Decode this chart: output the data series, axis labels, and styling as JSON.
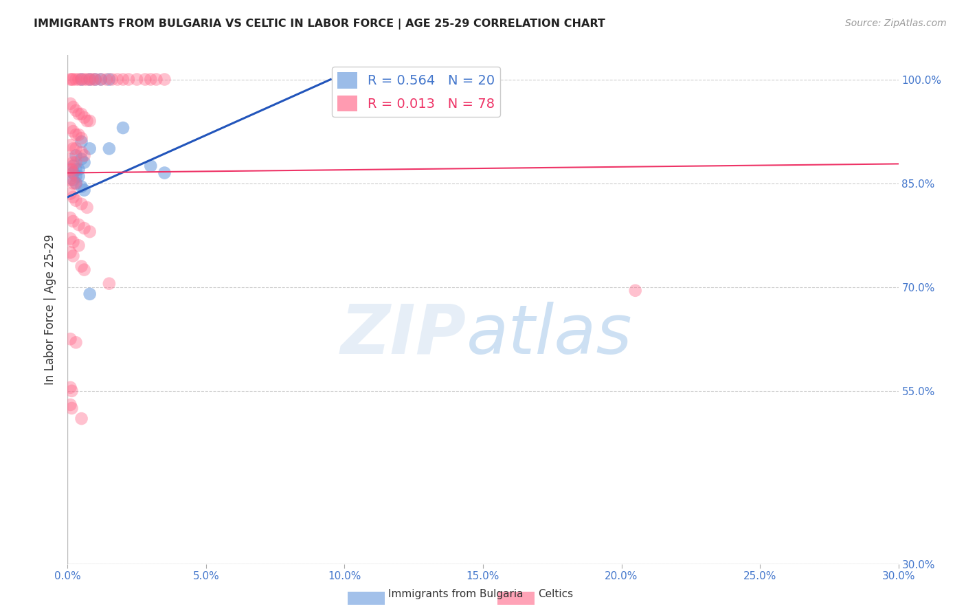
{
  "title": "IMMIGRANTS FROM BULGARIA VS CELTIC IN LABOR FORCE | AGE 25-29 CORRELATION CHART",
  "source": "Source: ZipAtlas.com",
  "ylabel": "In Labor Force | Age 25-29",
  "y_ticks": [
    30.0,
    55.0,
    70.0,
    85.0,
    100.0
  ],
  "x_ticks": [
    0.0,
    5.0,
    10.0,
    15.0,
    20.0,
    25.0,
    30.0
  ],
  "xlim": [
    0.0,
    30.0
  ],
  "ylim": [
    30.0,
    103.5
  ],
  "bg_color": "#ffffff",
  "grid_color": "#cccccc",
  "blue_color": "#6699dd",
  "pink_color": "#ff6688",
  "blue_line_color": "#2255bb",
  "pink_line_color": "#ee3366",
  "blue_scatter": [
    [
      0.5,
      100.0
    ],
    [
      0.8,
      100.0
    ],
    [
      1.0,
      100.0
    ],
    [
      1.2,
      100.0
    ],
    [
      1.5,
      100.0
    ],
    [
      0.5,
      91.0
    ],
    [
      0.8,
      90.0
    ],
    [
      0.3,
      89.0
    ],
    [
      0.5,
      88.5
    ],
    [
      0.6,
      88.0
    ],
    [
      0.2,
      87.5
    ],
    [
      0.3,
      87.0
    ],
    [
      0.4,
      87.0
    ],
    [
      0.2,
      86.5
    ],
    [
      0.3,
      86.0
    ],
    [
      0.4,
      86.0
    ],
    [
      0.2,
      85.5
    ],
    [
      0.3,
      85.0
    ],
    [
      0.5,
      84.5
    ],
    [
      0.6,
      84.0
    ],
    [
      1.5,
      90.0
    ],
    [
      3.0,
      87.5
    ],
    [
      3.5,
      86.5
    ],
    [
      2.0,
      93.0
    ],
    [
      0.8,
      69.0
    ]
  ],
  "pink_scatter": [
    [
      0.1,
      100.0
    ],
    [
      0.15,
      100.0
    ],
    [
      0.2,
      100.0
    ],
    [
      0.3,
      100.0
    ],
    [
      0.4,
      100.0
    ],
    [
      0.5,
      100.0
    ],
    [
      0.6,
      100.0
    ],
    [
      0.7,
      100.0
    ],
    [
      0.8,
      100.0
    ],
    [
      0.9,
      100.0
    ],
    [
      1.0,
      100.0
    ],
    [
      1.2,
      100.0
    ],
    [
      1.4,
      100.0
    ],
    [
      1.6,
      100.0
    ],
    [
      1.8,
      100.0
    ],
    [
      2.0,
      100.0
    ],
    [
      2.2,
      100.0
    ],
    [
      2.5,
      100.0
    ],
    [
      2.8,
      100.0
    ],
    [
      3.0,
      100.0
    ],
    [
      3.2,
      100.0
    ],
    [
      3.5,
      100.0
    ],
    [
      0.1,
      96.5
    ],
    [
      0.2,
      96.0
    ],
    [
      0.3,
      95.5
    ],
    [
      0.4,
      95.0
    ],
    [
      0.5,
      95.0
    ],
    [
      0.6,
      94.5
    ],
    [
      0.7,
      94.0
    ],
    [
      0.8,
      94.0
    ],
    [
      0.1,
      93.0
    ],
    [
      0.2,
      92.5
    ],
    [
      0.3,
      92.0
    ],
    [
      0.4,
      92.0
    ],
    [
      0.5,
      91.5
    ],
    [
      0.1,
      90.5
    ],
    [
      0.2,
      90.0
    ],
    [
      0.3,
      90.0
    ],
    [
      0.5,
      89.5
    ],
    [
      0.6,
      89.0
    ],
    [
      0.1,
      88.5
    ],
    [
      0.2,
      88.0
    ],
    [
      0.3,
      88.0
    ],
    [
      0.1,
      87.0
    ],
    [
      0.15,
      87.0
    ],
    [
      0.2,
      86.5
    ],
    [
      0.1,
      85.5
    ],
    [
      0.2,
      85.0
    ],
    [
      0.3,
      85.0
    ],
    [
      0.1,
      83.5
    ],
    [
      0.2,
      83.0
    ],
    [
      0.3,
      82.5
    ],
    [
      0.5,
      82.0
    ],
    [
      0.7,
      81.5
    ],
    [
      0.1,
      80.0
    ],
    [
      0.2,
      79.5
    ],
    [
      0.4,
      79.0
    ],
    [
      0.6,
      78.5
    ],
    [
      0.8,
      78.0
    ],
    [
      0.1,
      77.0
    ],
    [
      0.2,
      76.5
    ],
    [
      0.4,
      76.0
    ],
    [
      0.1,
      75.0
    ],
    [
      0.2,
      74.5
    ],
    [
      0.5,
      73.0
    ],
    [
      0.6,
      72.5
    ],
    [
      1.5,
      70.5
    ],
    [
      0.1,
      62.5
    ],
    [
      0.3,
      62.0
    ],
    [
      0.1,
      55.5
    ],
    [
      0.15,
      55.0
    ],
    [
      0.1,
      53.0
    ],
    [
      0.15,
      52.5
    ],
    [
      0.5,
      51.0
    ],
    [
      20.5,
      69.5
    ]
  ],
  "blue_line": {
    "x0": 0.0,
    "x1": 9.5,
    "y0": 83.0,
    "y1": 100.0
  },
  "pink_line": {
    "x0": 0.0,
    "x1": 30.0,
    "y0": 86.5,
    "y1": 87.8
  }
}
